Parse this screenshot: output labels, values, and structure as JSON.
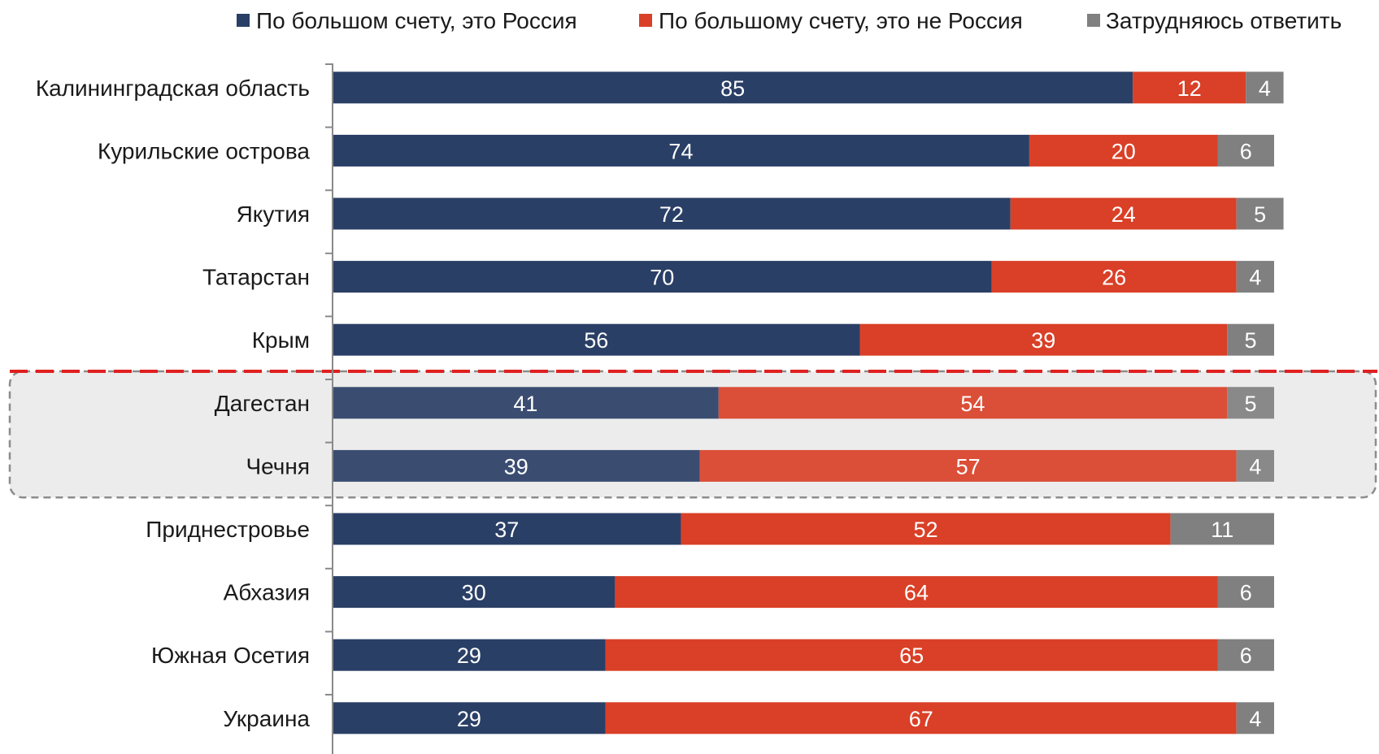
{
  "chart_data": {
    "type": "bar",
    "orientation": "horizontal",
    "stacked": true,
    "title": "",
    "xlabel": "",
    "ylabel": "",
    "xlim": [
      0,
      100
    ],
    "legend_position": "top-right",
    "grid": false,
    "categories": [
      "Калининградская область",
      "Курильские острова",
      "Якутия",
      "Татарстан",
      "Крым",
      "Дагестан",
      "Чечня",
      "Приднестровье",
      "Абхазия",
      "Южная Осетия",
      "Украина"
    ],
    "series": [
      {
        "name": "По большом счету, это Россия",
        "color": "#2a3f66",
        "values": [
          85,
          74,
          72,
          70,
          56,
          41,
          39,
          37,
          30,
          29,
          29
        ]
      },
      {
        "name": "По большому счету, это не Россия",
        "color": "#d94027",
        "values": [
          12,
          20,
          24,
          26,
          39,
          54,
          57,
          52,
          64,
          65,
          67
        ]
      },
      {
        "name": "Затрудняюсь ответить",
        "color": "#808080",
        "values": [
          4,
          6,
          5,
          4,
          5,
          5,
          4,
          11,
          6,
          6,
          4
        ]
      }
    ],
    "highlight": {
      "categories": [
        "Дагестан",
        "Чечня"
      ],
      "box_fill": "#ececec",
      "box_border": "#8c8c8c",
      "separator_color": "#e02020"
    }
  }
}
